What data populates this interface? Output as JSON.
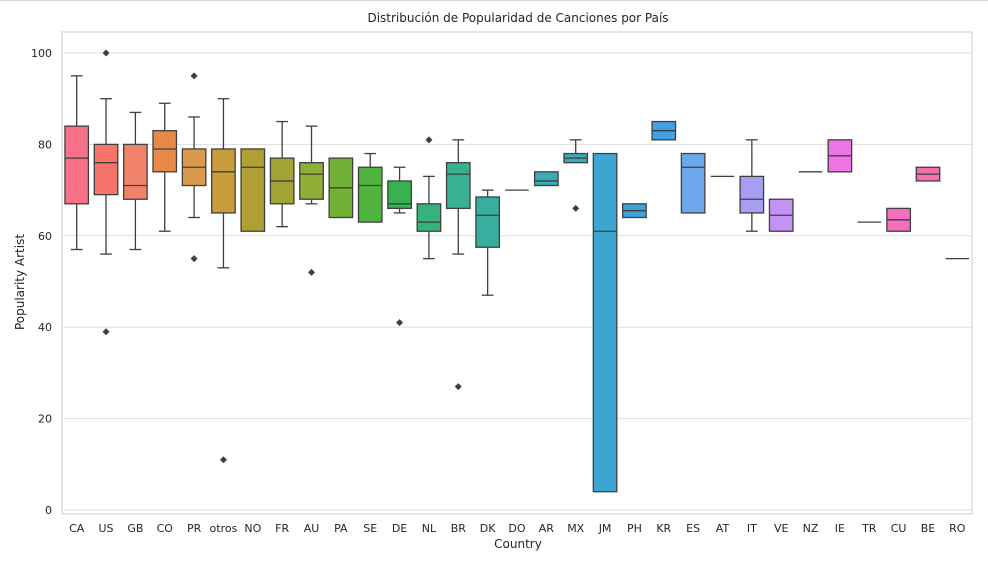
{
  "chart_data": {
    "type": "box",
    "title": "Distribución de Popularidad de Canciones por País",
    "xlabel": "Country",
    "ylabel": "Popularity Artist",
    "ylim": [
      -1,
      105
    ],
    "yticks": [
      0,
      20,
      40,
      60,
      80,
      100
    ],
    "grid": true,
    "categories": [
      "CA",
      "US",
      "GB",
      "CO",
      "PR",
      "otros",
      "NO",
      "FR",
      "AU",
      "PA",
      "SE",
      "DE",
      "NL",
      "BR",
      "DK",
      "DO",
      "AR",
      "MX",
      "JM",
      "PH",
      "KR",
      "ES",
      "AT",
      "IT",
      "VE",
      "NZ",
      "IE",
      "TR",
      "CU",
      "BE",
      "RO"
    ],
    "boxes": [
      {
        "country": "CA",
        "color": "#f77189",
        "q1": 67,
        "median": 77,
        "q3": 84,
        "whislo": 57,
        "whishi": 95,
        "fliers": []
      },
      {
        "country": "US",
        "color": "#f7746b",
        "q1": 69,
        "median": 76,
        "q3": 80,
        "whislo": 56,
        "whishi": 90,
        "fliers": [
          39,
          100
        ]
      },
      {
        "country": "GB",
        "color": "#f2816a",
        "q1": 68,
        "median": 71,
        "q3": 80,
        "whislo": 57,
        "whishi": 87,
        "fliers": []
      },
      {
        "country": "CO",
        "color": "#e68a4a",
        "q1": 74,
        "median": 79,
        "q3": 83,
        "whislo": 61,
        "whishi": 89,
        "fliers": []
      },
      {
        "country": "PR",
        "color": "#d99a4e",
        "q1": 71,
        "median": 75,
        "q3": 79,
        "whislo": 64,
        "whishi": 86,
        "fliers": [
          55,
          95
        ]
      },
      {
        "country": "otros",
        "color": "#c99d3e",
        "q1": 65,
        "median": 74,
        "q3": 79,
        "whislo": 53,
        "whishi": 90,
        "fliers": [
          11
        ]
      },
      {
        "country": "NO",
        "color": "#b0a033",
        "q1": 61,
        "median": 75,
        "q3": 79,
        "whislo": 61,
        "whishi": 79,
        "fliers": []
      },
      {
        "country": "FR",
        "color": "#a2a534",
        "q1": 67,
        "median": 72,
        "q3": 77,
        "whislo": 62,
        "whishi": 85,
        "fliers": []
      },
      {
        "country": "AU",
        "color": "#8fae35",
        "q1": 68,
        "median": 73.5,
        "q3": 76,
        "whislo": 67,
        "whishi": 84,
        "fliers": [
          52
        ]
      },
      {
        "country": "PA",
        "color": "#72b136",
        "q1": 64,
        "median": 70.5,
        "q3": 77,
        "whislo": 64,
        "whishi": 77,
        "fliers": []
      },
      {
        "country": "SE",
        "color": "#4fb33d",
        "q1": 63,
        "median": 71,
        "q3": 75,
        "whislo": 63,
        "whishi": 78,
        "fliers": []
      },
      {
        "country": "DE",
        "color": "#36b34f",
        "q1": 66,
        "median": 67,
        "q3": 72,
        "whislo": 65,
        "whishi": 75,
        "fliers": [
          41
        ]
      },
      {
        "country": "NL",
        "color": "#36b37a",
        "q1": 61,
        "median": 63,
        "q3": 67,
        "whislo": 55,
        "whishi": 73,
        "fliers": [
          81
        ]
      },
      {
        "country": "BR",
        "color": "#37b18f",
        "q1": 66,
        "median": 73.5,
        "q3": 76,
        "whislo": 56,
        "whishi": 81,
        "fliers": [
          27
        ]
      },
      {
        "country": "DK",
        "color": "#38ae9e",
        "q1": 57.5,
        "median": 64.5,
        "q3": 68.5,
        "whislo": 47,
        "whishi": 70,
        "fliers": []
      },
      {
        "country": "DO",
        "color": "#39acab",
        "q1": 70,
        "median": 70,
        "q3": 70,
        "whislo": 70,
        "whishi": 70,
        "fliers": []
      },
      {
        "country": "AR",
        "color": "#3aaab7",
        "q1": 71,
        "median": 72,
        "q3": 74,
        "whislo": 71,
        "whishi": 74,
        "fliers": []
      },
      {
        "country": "MX",
        "color": "#3ba8c4",
        "q1": 76,
        "median": 77,
        "q3": 78,
        "whislo": 76,
        "whishi": 81,
        "fliers": [
          66
        ]
      },
      {
        "country": "JM",
        "color": "#3da6d0",
        "q1": 4,
        "median": 61,
        "q3": 78,
        "whislo": 4,
        "whishi": 78,
        "fliers": []
      },
      {
        "country": "PH",
        "color": "#3ea3dc",
        "q1": 64,
        "median": 65.5,
        "q3": 67,
        "whislo": 64,
        "whishi": 67,
        "fliers": []
      },
      {
        "country": "KR",
        "color": "#42a1e4",
        "q1": 81,
        "median": 83,
        "q3": 85,
        "whislo": 81,
        "whishi": 85,
        "fliers": []
      },
      {
        "country": "ES",
        "color": "#6ea8ec",
        "q1": 65,
        "median": 75,
        "q3": 78,
        "whislo": 65,
        "whishi": 78,
        "fliers": []
      },
      {
        "country": "AT",
        "color": "#8ea6f0",
        "q1": 73,
        "median": 73,
        "q3": 73,
        "whislo": 73,
        "whishi": 73,
        "fliers": []
      },
      {
        "country": "IT",
        "color": "#a79ef2",
        "q1": 65,
        "median": 68,
        "q3": 73,
        "whislo": 61,
        "whishi": 81,
        "fliers": []
      },
      {
        "country": "VE",
        "color": "#c392f3",
        "q1": 61,
        "median": 64.5,
        "q3": 68,
        "whislo": 61,
        "whishi": 68,
        "fliers": []
      },
      {
        "country": "NZ",
        "color": "#d88af2",
        "q1": 74,
        "median": 74,
        "q3": 74,
        "whislo": 74,
        "whishi": 74,
        "fliers": []
      },
      {
        "country": "IE",
        "color": "#ee76e4",
        "q1": 74,
        "median": 77.5,
        "q3": 81,
        "whislo": 74,
        "whishi": 81,
        "fliers": []
      },
      {
        "country": "TR",
        "color": "#f470cf",
        "q1": 63,
        "median": 63,
        "q3": 63,
        "whislo": 63,
        "whishi": 63,
        "fliers": []
      },
      {
        "country": "CU",
        "color": "#f56fbf",
        "q1": 61,
        "median": 63.5,
        "q3": 66,
        "whislo": 61,
        "whishi": 66,
        "fliers": []
      },
      {
        "country": "BE",
        "color": "#f670ad",
        "q1": 72,
        "median": 73.5,
        "q3": 75,
        "whislo": 72,
        "whishi": 75,
        "fliers": []
      },
      {
        "country": "RO",
        "color": "#f7719b",
        "q1": 55,
        "median": 55,
        "q3": 55,
        "whislo": 55,
        "whishi": 55,
        "fliers": []
      }
    ]
  }
}
